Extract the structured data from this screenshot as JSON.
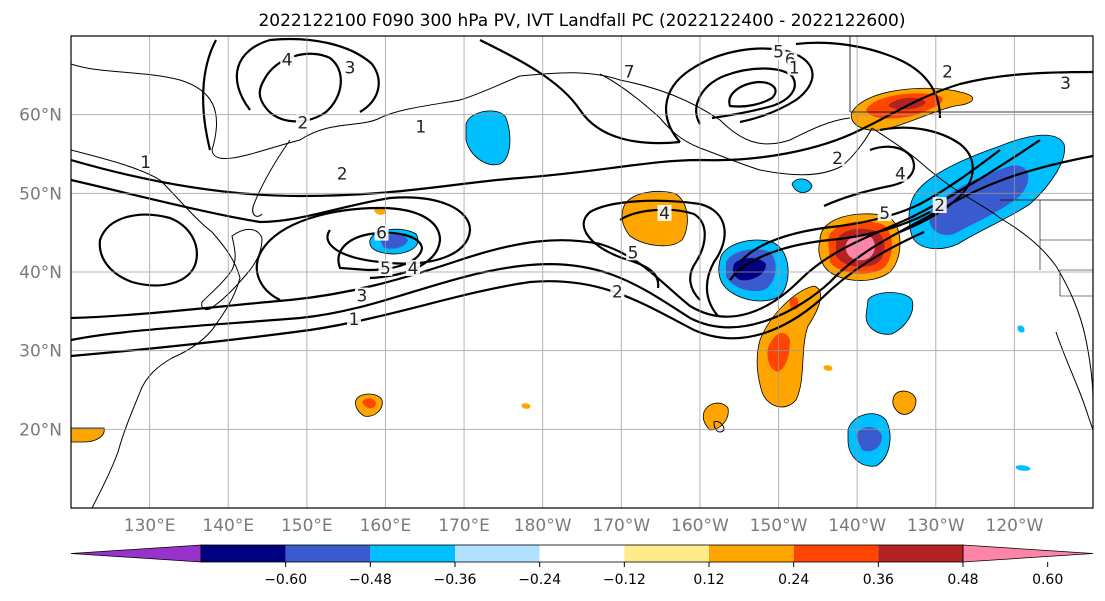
{
  "title": "2022122100 F090 300 hPa PV, IVT Landfall PC (2022122400 - 2022122600)",
  "map": {
    "projection": "PlateCarree",
    "lon_range": [
      120,
      250
    ],
    "lat_range": [
      10,
      70
    ],
    "gridlines": true,
    "lat_ticks": [
      {
        "value": 20,
        "label": "20°N"
      },
      {
        "value": 30,
        "label": "30°N"
      },
      {
        "value": 40,
        "label": "40°N"
      },
      {
        "value": 50,
        "label": "50°N"
      },
      {
        "value": 60,
        "label": "60°N"
      }
    ],
    "lon_ticks": [
      {
        "value": 130,
        "label": "130°E"
      },
      {
        "value": 140,
        "label": "140°E"
      },
      {
        "value": 150,
        "label": "150°E"
      },
      {
        "value": 160,
        "label": "160°E"
      },
      {
        "value": 170,
        "label": "170°E"
      },
      {
        "value": 180,
        "label": "180°W"
      },
      {
        "value": 190,
        "label": "170°W"
      },
      {
        "value": 200,
        "label": "160°W"
      },
      {
        "value": 210,
        "label": "150°W"
      },
      {
        "value": 220,
        "label": "140°W"
      },
      {
        "value": 230,
        "label": "130°W"
      },
      {
        "value": 240,
        "label": "120°W"
      }
    ]
  },
  "contour_labels": [
    {
      "text": "4",
      "lon": 147.5,
      "lat": 66.5
    },
    {
      "text": "3",
      "lon": 155.5,
      "lat": 65.5
    },
    {
      "text": "2",
      "lon": 149.5,
      "lat": 58.5
    },
    {
      "text": "1",
      "lon": 164.5,
      "lat": 58.0
    },
    {
      "text": "1",
      "lon": 129.5,
      "lat": 53.5
    },
    {
      "text": "2",
      "lon": 154.5,
      "lat": 52.0
    },
    {
      "text": "6",
      "lon": 159.5,
      "lat": 44.5
    },
    {
      "text": "5",
      "lon": 160.0,
      "lat": 40.0
    },
    {
      "text": "4",
      "lon": 163.5,
      "lat": 40.0
    },
    {
      "text": "3",
      "lon": 157.0,
      "lat": 36.5
    },
    {
      "text": "1",
      "lon": 156.0,
      "lat": 33.5
    },
    {
      "text": "4",
      "lon": 195.5,
      "lat": 47.0
    },
    {
      "text": "5",
      "lon": 191.5,
      "lat": 42.0
    },
    {
      "text": "2",
      "lon": 189.5,
      "lat": 37.0
    },
    {
      "text": "7",
      "lon": 191.0,
      "lat": 65.0
    },
    {
      "text": "5",
      "lon": 210.0,
      "lat": 67.5
    },
    {
      "text": "6",
      "lon": 211.5,
      "lat": 66.5
    },
    {
      "text": "1",
      "lon": 212.0,
      "lat": 65.5
    },
    {
      "text": "2",
      "lon": 217.5,
      "lat": 54.0
    },
    {
      "text": "4",
      "lon": 225.5,
      "lat": 52.0
    },
    {
      "text": "5",
      "lon": 223.5,
      "lat": 47.0
    },
    {
      "text": "2",
      "lon": 230.5,
      "lat": 48.0
    },
    {
      "text": "2",
      "lon": 231.5,
      "lat": 65.0
    },
    {
      "text": "3",
      "lon": 246.5,
      "lat": 63.5
    }
  ],
  "colorbar": {
    "extend": "both",
    "colors": [
      "#9932CC",
      "#000080",
      "#3A5BCD",
      "#00BFFF",
      "#B0E2FF",
      "#FFFFFF",
      "#FFEB8A",
      "#FFA500",
      "#FF4500",
      "#B22222",
      "#FF85A8"
    ],
    "ticks": [
      -0.6,
      -0.48,
      -0.36,
      -0.24,
      -0.12,
      0.12,
      0.24,
      0.36,
      0.48,
      0.6
    ],
    "tick_labels": [
      "−0.60",
      "−0.48",
      "−0.36",
      "−0.24",
      "−0.12",
      "0.12",
      "0.24",
      "0.36",
      "0.48",
      "0.60"
    ]
  }
}
